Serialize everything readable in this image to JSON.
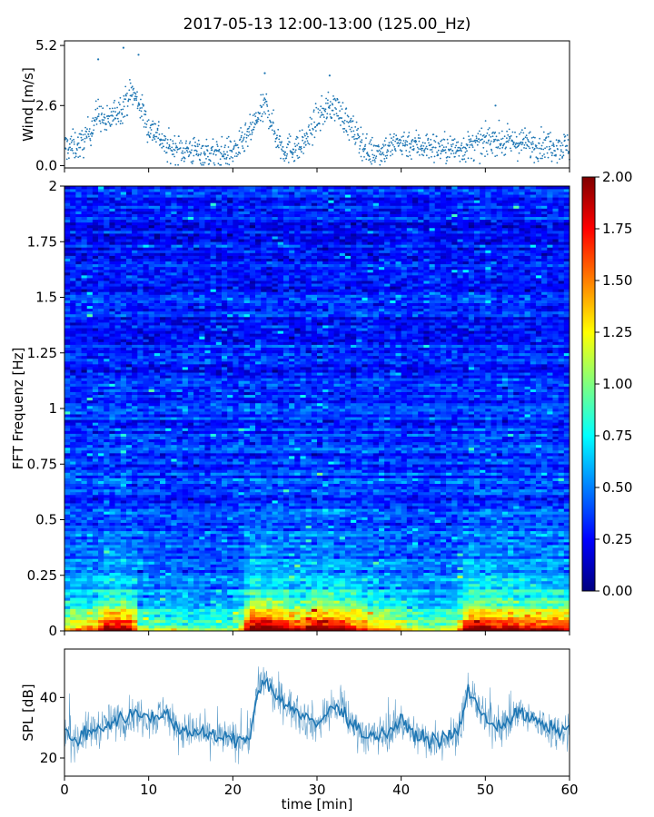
{
  "figure": {
    "title": "2017-05-13 12:00-13:00 (125.00_Hz)"
  },
  "colors": {
    "series": "#1f77b4",
    "axis": "#000000",
    "background": "#ffffff",
    "colormap": [
      "#00007f",
      "#0000ff",
      "#007fff",
      "#00ffff",
      "#7fff7f",
      "#ffff00",
      "#ff7f00",
      "#ff0000",
      "#7f0000"
    ]
  },
  "chart_data": [
    {
      "type": "scatter",
      "panel": "wind",
      "ylabel": "Wind [m/s]",
      "xlabel": "",
      "xlim": [
        0,
        60
      ],
      "ylim": [
        -0.1,
        5.4
      ],
      "yticks": [
        0.0,
        2.6,
        5.2
      ],
      "ytick_labels": [
        "0.0",
        "2.6",
        "5.2"
      ],
      "xticks": [
        0,
        10,
        20,
        30,
        40,
        50,
        60
      ],
      "trend_minutes": [
        0,
        2,
        3,
        4,
        5,
        6,
        7,
        8,
        9,
        10,
        11,
        12,
        14,
        16,
        18,
        20,
        21,
        22,
        23,
        24,
        25,
        26,
        28,
        29,
        30,
        31,
        32,
        33,
        34,
        35,
        36,
        38,
        40,
        42,
        44,
        46,
        48,
        50,
        51,
        52,
        54,
        56,
        58,
        60
      ],
      "trend_values": [
        0.8,
        0.9,
        1.5,
        2.3,
        1.8,
        2.3,
        2.6,
        3.2,
        2.6,
        1.6,
        1.5,
        0.8,
        0.7,
        0.6,
        0.5,
        0.6,
        0.9,
        1.4,
        2.1,
        2.6,
        1.4,
        0.7,
        0.8,
        1.3,
        2.0,
        2.4,
        2.6,
        2.2,
        1.6,
        1.2,
        0.6,
        0.7,
        1.0,
        0.9,
        0.8,
        0.7,
        0.8,
        1.0,
        1.2,
        1.0,
        1.0,
        0.9,
        0.9,
        0.8
      ],
      "peaks": [
        {
          "x": 4.0,
          "y": 4.6
        },
        {
          "x": 7.0,
          "y": 5.1
        },
        {
          "x": 8.8,
          "y": 4.8
        },
        {
          "x": 23.8,
          "y": 4.0
        },
        {
          "x": 31.5,
          "y": 3.9
        },
        {
          "x": 51.2,
          "y": 2.6
        }
      ]
    },
    {
      "type": "heatmap",
      "panel": "spectrogram",
      "ylabel": "FFT Frequenz [Hz]",
      "xlabel": "",
      "xlim": [
        0,
        60
      ],
      "ylim": [
        0,
        2
      ],
      "yticks": [
        0,
        0.25,
        0.5,
        0.75,
        1,
        1.25,
        1.5,
        1.75,
        2
      ],
      "ytick_labels": [
        "0",
        "0.25",
        "0.5",
        "0.75",
        "1",
        "1.25",
        "1.5",
        "1.75",
        "2"
      ],
      "xticks": [
        0,
        10,
        20,
        30,
        40,
        50,
        60
      ],
      "value_range": [
        0,
        2
      ],
      "colorbar": {
        "ticks": [
          0.0,
          0.25,
          0.5,
          0.75,
          1.0,
          1.25,
          1.5,
          1.75,
          2.0
        ],
        "tick_labels": [
          "0.00",
          "0.25",
          "0.50",
          "0.75",
          "1.00",
          "1.25",
          "1.50",
          "1.75",
          "2.00"
        ]
      },
      "time_cols": 90,
      "freq_rows": 160,
      "energy_trend_minutes": [
        0,
        4,
        5,
        8,
        9,
        12,
        20,
        21,
        22,
        25,
        28,
        30,
        33,
        36,
        40,
        42,
        46,
        47,
        48,
        52,
        55,
        60
      ],
      "energy_trend_values": [
        0.45,
        0.55,
        0.75,
        0.7,
        0.35,
        0.3,
        0.3,
        0.4,
        0.85,
        0.8,
        0.65,
        0.8,
        0.75,
        0.55,
        0.45,
        0.35,
        0.35,
        0.5,
        0.8,
        0.75,
        0.7,
        0.65
      ]
    },
    {
      "type": "line",
      "panel": "spl",
      "ylabel": "SPL [dB]",
      "xlabel": "time [min]",
      "xlim": [
        0,
        60
      ],
      "ylim": [
        14,
        56
      ],
      "yticks": [
        20,
        40
      ],
      "ytick_labels": [
        "20",
        "40"
      ],
      "xticks": [
        0,
        10,
        20,
        30,
        40,
        50,
        60
      ],
      "xtick_labels": [
        "0",
        "10",
        "20",
        "30",
        "40",
        "50",
        "60"
      ],
      "trend_minutes": [
        0,
        1,
        2,
        3,
        4,
        6,
        8,
        10,
        11,
        12,
        13,
        14,
        16,
        18,
        20,
        21,
        22,
        23,
        24,
        25,
        26,
        28,
        30,
        31,
        32,
        33,
        34,
        36,
        38,
        40,
        42,
        44,
        46,
        47,
        48,
        49,
        50,
        52,
        54,
        56,
        58,
        60
      ],
      "trend_values": [
        29,
        26,
        27,
        29,
        30,
        32,
        34,
        34,
        33,
        36,
        31,
        29,
        28,
        27,
        26,
        26,
        27,
        43,
        46,
        40,
        39,
        34,
        31,
        34,
        37,
        36,
        32,
        27,
        28,
        32,
        27,
        26,
        27,
        30,
        43,
        38,
        32,
        31,
        35,
        32,
        29,
        30
      ],
      "peak_max": 54,
      "trough_min": 18
    }
  ]
}
